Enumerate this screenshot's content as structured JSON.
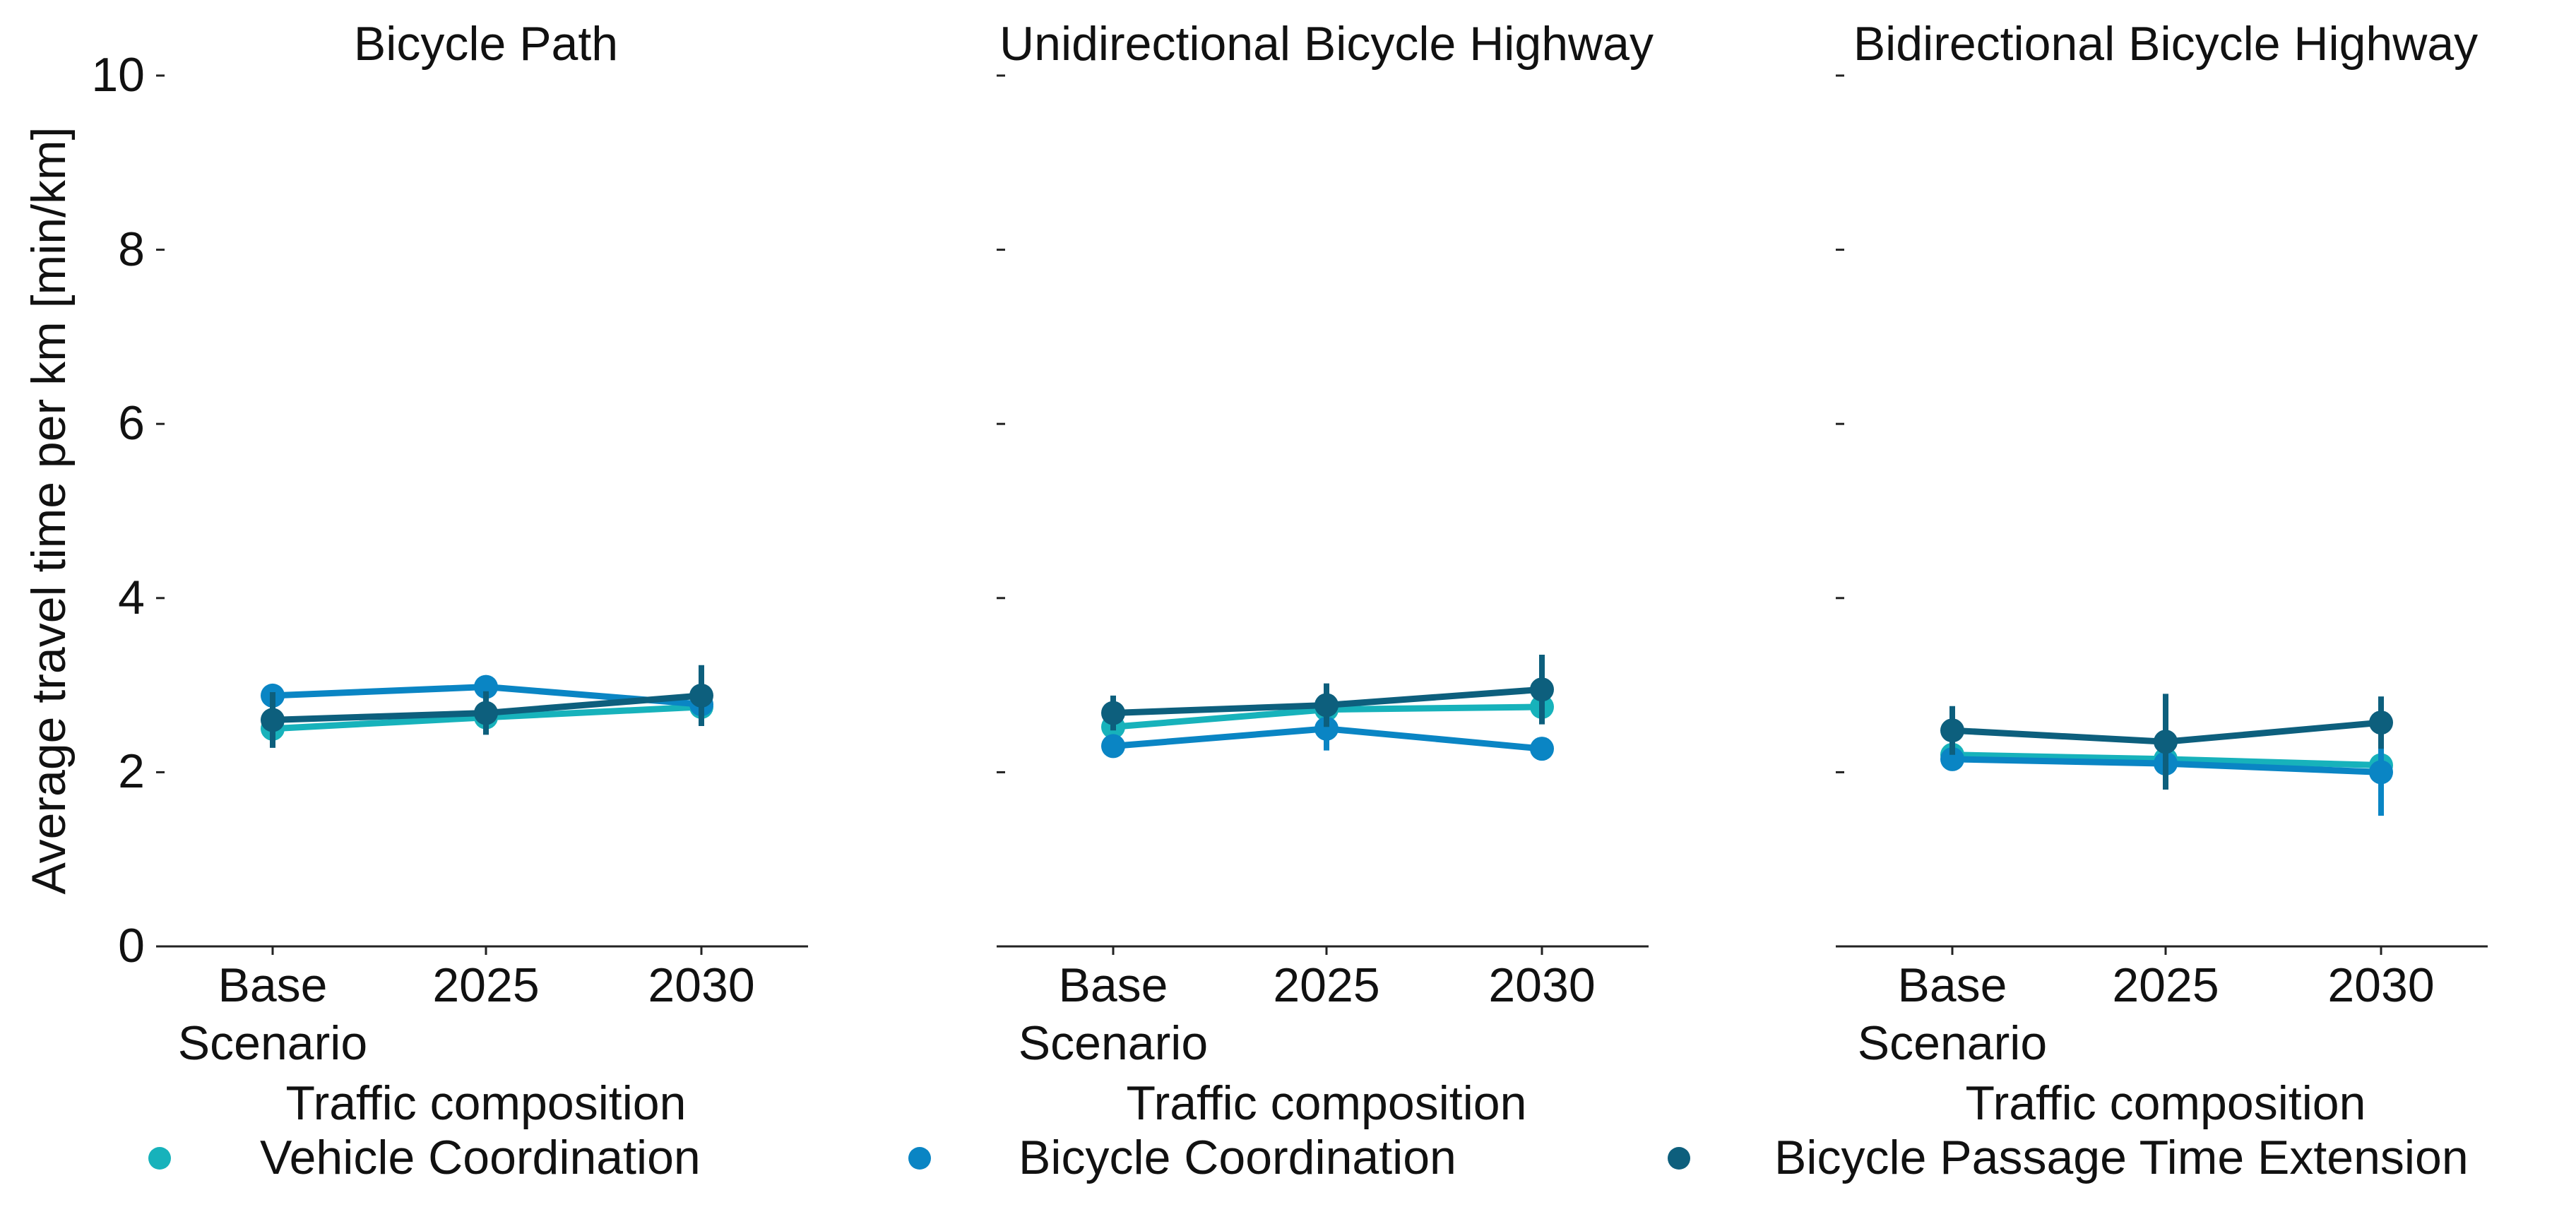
{
  "chart_data": [
    {
      "type": "line",
      "title": "Bicycle Path",
      "xlabel": "Traffic composition",
      "ylabel": "Average travel time per km [min/km]",
      "categories": [
        "Base Scenario",
        "2025",
        "2030"
      ],
      "ylim": [
        0,
        10
      ],
      "yticks": [
        0,
        2,
        4,
        6,
        8,
        10
      ],
      "series": [
        {
          "name": "Vehicle Coordination",
          "color": "#17b2bb",
          "values": [
            2.5,
            2.63,
            2.75
          ],
          "errors": [
            0.1,
            0.1,
            0.12
          ]
        },
        {
          "name": "Bicycle Coordination",
          "color": "#0a85c4",
          "values": [
            2.88,
            2.98,
            2.78
          ],
          "errors": [
            0.12,
            0.08,
            0.1
          ]
        },
        {
          "name": "Bicycle Passage Time Extension",
          "color": "#0d5f7d",
          "values": [
            2.6,
            2.68,
            2.88
          ],
          "errors": [
            0.32,
            0.25,
            0.35
          ]
        }
      ]
    },
    {
      "type": "line",
      "title": "Unidirectional Bicycle Highway",
      "xlabel": "Traffic composition",
      "categories": [
        "Base Scenario",
        "2025",
        "2030"
      ],
      "ylim": [
        0,
        10
      ],
      "yticks": [
        0,
        2,
        4,
        6,
        8,
        10
      ],
      "series": [
        {
          "name": "Vehicle Coordination",
          "color": "#17b2bb",
          "values": [
            2.52,
            2.72,
            2.75
          ],
          "errors": [
            0.12,
            0.1,
            0.12
          ]
        },
        {
          "name": "Bicycle Coordination",
          "color": "#0a85c4",
          "values": [
            2.3,
            2.5,
            2.27
          ],
          "errors": [
            0.1,
            0.25,
            0.1
          ]
        },
        {
          "name": "Bicycle Passage Time Extension",
          "color": "#0d5f7d",
          "values": [
            2.68,
            2.77,
            2.95
          ],
          "errors": [
            0.2,
            0.25,
            0.4
          ]
        }
      ]
    },
    {
      "type": "line",
      "title": "Bidirectional Bicycle Highway",
      "xlabel": "Traffic composition",
      "categories": [
        "Base Scenario",
        "2025",
        "2030"
      ],
      "ylim": [
        0,
        10
      ],
      "yticks": [
        0,
        2,
        4,
        6,
        8,
        10
      ],
      "series": [
        {
          "name": "Vehicle Coordination",
          "color": "#17b2bb",
          "values": [
            2.2,
            2.15,
            2.08
          ],
          "errors": [
            0.1,
            0.1,
            0.1
          ]
        },
        {
          "name": "Bicycle Coordination",
          "color": "#0a85c4",
          "values": [
            2.15,
            2.1,
            2.0
          ],
          "errors": [
            0.08,
            0.2,
            0.5
          ]
        },
        {
          "name": "Bicycle Passage Time Extension",
          "color": "#0d5f7d",
          "values": [
            2.48,
            2.35,
            2.57
          ],
          "errors": [
            0.28,
            0.55,
            0.3
          ]
        }
      ]
    }
  ]
}
